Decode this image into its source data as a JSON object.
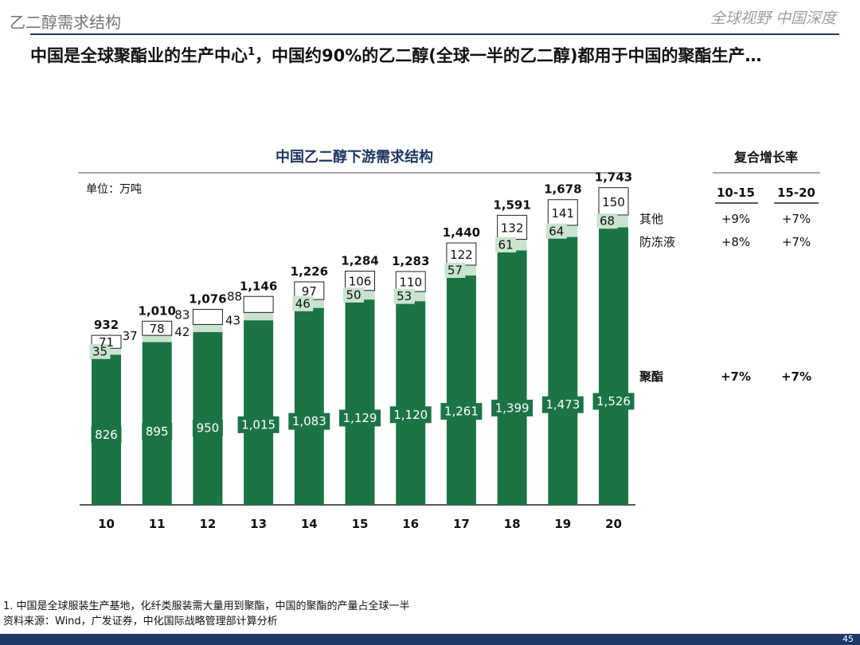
{
  "header": {
    "section": "乙二醇需求结构",
    "brand": "全球视野 中国深度"
  },
  "headline": {
    "text_a": "中国是全球聚酯业的生产中心",
    "note_mark": "1",
    "text_b": "，中国约90%的乙二醇(全球一半的乙二醇)都用于中国的聚酯生产…"
  },
  "chart_data": {
    "type": "bar",
    "stacked": true,
    "title": "中国乙二醇下游需求结构",
    "unit": "单位：万吨",
    "categories": [
      "10",
      "11",
      "12",
      "13",
      "14",
      "15",
      "16",
      "17",
      "18",
      "19",
      "20"
    ],
    "series": [
      {
        "name": "聚酯",
        "color": "#1c7446",
        "values": [
          826,
          895,
          950,
          1015,
          1083,
          1129,
          1120,
          1261,
          1399,
          1473,
          1526
        ]
      },
      {
        "name": "防冻液",
        "color": "#c9e3cf",
        "values": [
          35,
          37,
          42,
          43,
          46,
          50,
          53,
          57,
          61,
          64,
          68
        ]
      },
      {
        "name": "其他",
        "color": "#ffffff",
        "values": [
          71,
          78,
          83,
          88,
          97,
          106,
          110,
          122,
          132,
          141,
          150
        ]
      }
    ],
    "totals": [
      "932",
      "1,010",
      "1,076",
      "1,146",
      "1,226",
      "1,284",
      "1,283",
      "1,440",
      "1,591",
      "1,678",
      "1,743"
    ],
    "value_labels": {
      "聚酯": [
        "826",
        "895",
        "950",
        "1,015",
        "1,083",
        "1,129",
        "1,120",
        "1,261",
        "1,399",
        "1,473",
        "1,526"
      ],
      "防冻液": [
        "35",
        "37",
        "42",
        "43",
        "46",
        "50",
        "53",
        "57",
        "61",
        "64",
        "68"
      ],
      "其他": [
        "71",
        "78",
        "83",
        "88",
        "97",
        "106",
        "110",
        "122",
        "132",
        "141",
        "150"
      ]
    },
    "ylim": [
      0,
      1800
    ],
    "xlabel": "",
    "ylabel": ""
  },
  "growth_table": {
    "title": "复合增长率",
    "columns": [
      "10-15",
      "15-20"
    ],
    "rows": [
      {
        "label": "其他",
        "values": [
          "+9%",
          "+7%"
        ]
      },
      {
        "label": "防冻液",
        "values": [
          "+8%",
          "+7%"
        ]
      },
      {
        "label": "聚酯",
        "values": [
          "+7%",
          "+7%"
        ]
      }
    ]
  },
  "footnotes": [
    "1. 中国是全球服装生产基地，化纤类服装需大量用到聚酯，中国的聚酯的产量占全球一半",
    "资料来源：Wind，广发证券，中化国际战略管理部计算分析"
  ],
  "page_number": "45"
}
